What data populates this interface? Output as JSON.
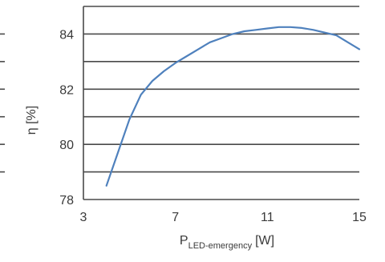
{
  "chart_data": {
    "type": "line",
    "xlabel_main": "P",
    "xlabel_sub": "LED-emergency",
    "xlabel_unit": "[W]",
    "ylabel": "η [%]",
    "xlim": [
      3,
      15
    ],
    "ylim": [
      78,
      85
    ],
    "x_ticks": [
      3,
      7,
      11,
      15
    ],
    "y_ticks": [
      78,
      80,
      82,
      84
    ],
    "grid": true,
    "series": [
      {
        "color": "#4f81bd",
        "points": [
          [
            4.0,
            78.5
          ],
          [
            4.5,
            79.7
          ],
          [
            5.0,
            80.9
          ],
          [
            5.5,
            81.8
          ],
          [
            6.0,
            82.3
          ],
          [
            6.5,
            82.65
          ],
          [
            7.0,
            82.95
          ],
          [
            7.5,
            83.2
          ],
          [
            8.0,
            83.45
          ],
          [
            8.5,
            83.7
          ],
          [
            9.0,
            83.85
          ],
          [
            9.5,
            84.0
          ],
          [
            10.0,
            84.1
          ],
          [
            10.5,
            84.15
          ],
          [
            11.0,
            84.2
          ],
          [
            11.5,
            84.25
          ],
          [
            12.0,
            84.25
          ],
          [
            12.5,
            84.22
          ],
          [
            13.0,
            84.15
          ],
          [
            13.5,
            84.05
          ],
          [
            14.0,
            83.95
          ],
          [
            14.5,
            83.7
          ],
          [
            15.0,
            83.45
          ]
        ]
      }
    ]
  }
}
